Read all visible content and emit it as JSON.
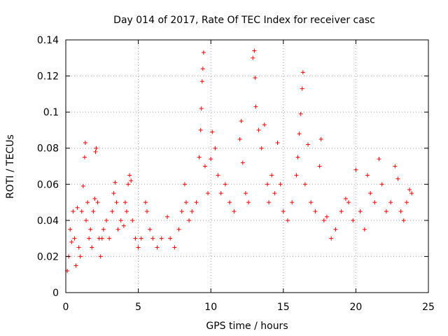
{
  "chart_data": {
    "type": "scatter",
    "title": "Day 014 of 2017, Rate Of TEC Index for receiver casc",
    "xlabel": "GPS time / hours",
    "ylabel": "ROTI / TECUs",
    "xlim": [
      0,
      25
    ],
    "ylim": [
      0,
      0.14
    ],
    "x_ticks": [
      0,
      5,
      10,
      15,
      20,
      25
    ],
    "x_tick_labels": [
      "0",
      "5",
      "10",
      "15",
      "20",
      "25"
    ],
    "y_ticks": [
      0,
      0.02,
      0.04,
      0.06,
      0.08,
      0.1,
      0.12,
      0.14
    ],
    "y_tick_labels": [
      "0",
      "0.02",
      "0.04",
      "0.06",
      "0.08",
      "0.1",
      "0.12",
      "0.14"
    ],
    "grid": true,
    "marker": "+",
    "color": "#ff0000",
    "series": [
      {
        "points": [
          [
            0.1,
            0.012
          ],
          [
            0.2,
            0.02
          ],
          [
            0.3,
            0.035
          ],
          [
            0.4,
            0.028
          ],
          [
            0.5,
            0.045
          ],
          [
            0.6,
            0.03
          ],
          [
            0.7,
            0.015
          ],
          [
            0.8,
            0.047
          ],
          [
            0.9,
            0.025
          ],
          [
            1.0,
            0.02
          ],
          [
            1.1,
            0.045
          ],
          [
            1.2,
            0.059
          ],
          [
            1.3,
            0.075
          ],
          [
            1.35,
            0.083
          ],
          [
            1.4,
            0.04
          ],
          [
            1.5,
            0.05
          ],
          [
            1.6,
            0.03
          ],
          [
            1.7,
            0.035
          ],
          [
            1.8,
            0.025
          ],
          [
            1.9,
            0.045
          ],
          [
            2.0,
            0.052
          ],
          [
            2.05,
            0.078
          ],
          [
            2.1,
            0.08
          ],
          [
            2.2,
            0.05
          ],
          [
            2.3,
            0.03
          ],
          [
            2.4,
            0.02
          ],
          [
            2.5,
            0.03
          ],
          [
            2.6,
            0.035
          ],
          [
            2.8,
            0.04
          ],
          [
            3.0,
            0.03
          ],
          [
            3.2,
            0.045
          ],
          [
            3.3,
            0.055
          ],
          [
            3.4,
            0.061
          ],
          [
            3.5,
            0.05
          ],
          [
            3.6,
            0.035
          ],
          [
            3.8,
            0.04
          ],
          [
            4.0,
            0.037
          ],
          [
            4.1,
            0.05
          ],
          [
            4.2,
            0.045
          ],
          [
            4.3,
            0.06
          ],
          [
            4.4,
            0.065
          ],
          [
            4.5,
            0.062
          ],
          [
            4.6,
            0.04
          ],
          [
            4.8,
            0.03
          ],
          [
            5.0,
            0.025
          ],
          [
            5.2,
            0.03
          ],
          [
            5.5,
            0.05
          ],
          [
            5.6,
            0.045
          ],
          [
            5.8,
            0.035
          ],
          [
            6.0,
            0.03
          ],
          [
            6.3,
            0.025
          ],
          [
            6.6,
            0.03
          ],
          [
            7.0,
            0.042
          ],
          [
            7.2,
            0.03
          ],
          [
            7.5,
            0.025
          ],
          [
            7.8,
            0.035
          ],
          [
            8.0,
            0.045
          ],
          [
            8.2,
            0.06
          ],
          [
            8.3,
            0.05
          ],
          [
            8.5,
            0.04
          ],
          [
            8.7,
            0.045
          ],
          [
            9.0,
            0.05
          ],
          [
            9.2,
            0.075
          ],
          [
            9.3,
            0.09
          ],
          [
            9.35,
            0.102
          ],
          [
            9.4,
            0.117
          ],
          [
            9.45,
            0.124
          ],
          [
            9.5,
            0.133
          ],
          [
            9.6,
            0.07
          ],
          [
            9.8,
            0.055
          ],
          [
            10.0,
            0.074
          ],
          [
            10.1,
            0.089
          ],
          [
            10.3,
            0.08
          ],
          [
            10.5,
            0.065
          ],
          [
            10.7,
            0.055
          ],
          [
            11.0,
            0.06
          ],
          [
            11.3,
            0.05
          ],
          [
            11.6,
            0.045
          ],
          [
            12.0,
            0.085
          ],
          [
            12.1,
            0.095
          ],
          [
            12.2,
            0.072
          ],
          [
            12.4,
            0.055
          ],
          [
            12.6,
            0.05
          ],
          [
            12.9,
            0.13
          ],
          [
            13.0,
            0.134
          ],
          [
            13.05,
            0.119
          ],
          [
            13.1,
            0.103
          ],
          [
            13.3,
            0.09
          ],
          [
            13.5,
            0.08
          ],
          [
            13.7,
            0.093
          ],
          [
            13.9,
            0.06
          ],
          [
            14.0,
            0.05
          ],
          [
            14.2,
            0.065
          ],
          [
            14.4,
            0.055
          ],
          [
            14.6,
            0.083
          ],
          [
            14.8,
            0.06
          ],
          [
            15.0,
            0.045
          ],
          [
            15.3,
            0.04
          ],
          [
            15.6,
            0.05
          ],
          [
            15.9,
            0.065
          ],
          [
            16.0,
            0.075
          ],
          [
            16.1,
            0.088
          ],
          [
            16.2,
            0.099
          ],
          [
            16.3,
            0.113
          ],
          [
            16.35,
            0.122
          ],
          [
            16.5,
            0.06
          ],
          [
            16.7,
            0.082
          ],
          [
            16.9,
            0.05
          ],
          [
            17.2,
            0.045
          ],
          [
            17.5,
            0.07
          ],
          [
            17.6,
            0.085
          ],
          [
            17.8,
            0.04
          ],
          [
            18.0,
            0.042
          ],
          [
            18.3,
            0.03
          ],
          [
            18.6,
            0.035
          ],
          [
            19.0,
            0.045
          ],
          [
            19.3,
            0.052
          ],
          [
            19.5,
            0.05
          ],
          [
            19.8,
            0.04
          ],
          [
            20.0,
            0.068
          ],
          [
            20.3,
            0.045
          ],
          [
            20.6,
            0.035
          ],
          [
            20.8,
            0.065
          ],
          [
            21.0,
            0.055
          ],
          [
            21.3,
            0.05
          ],
          [
            21.6,
            0.074
          ],
          [
            21.8,
            0.06
          ],
          [
            22.1,
            0.045
          ],
          [
            22.4,
            0.05
          ],
          [
            22.7,
            0.07
          ],
          [
            22.9,
            0.063
          ],
          [
            23.1,
            0.045
          ],
          [
            23.3,
            0.04
          ],
          [
            23.5,
            0.05
          ],
          [
            23.7,
            0.057
          ],
          [
            23.85,
            0.055
          ]
        ]
      }
    ]
  }
}
